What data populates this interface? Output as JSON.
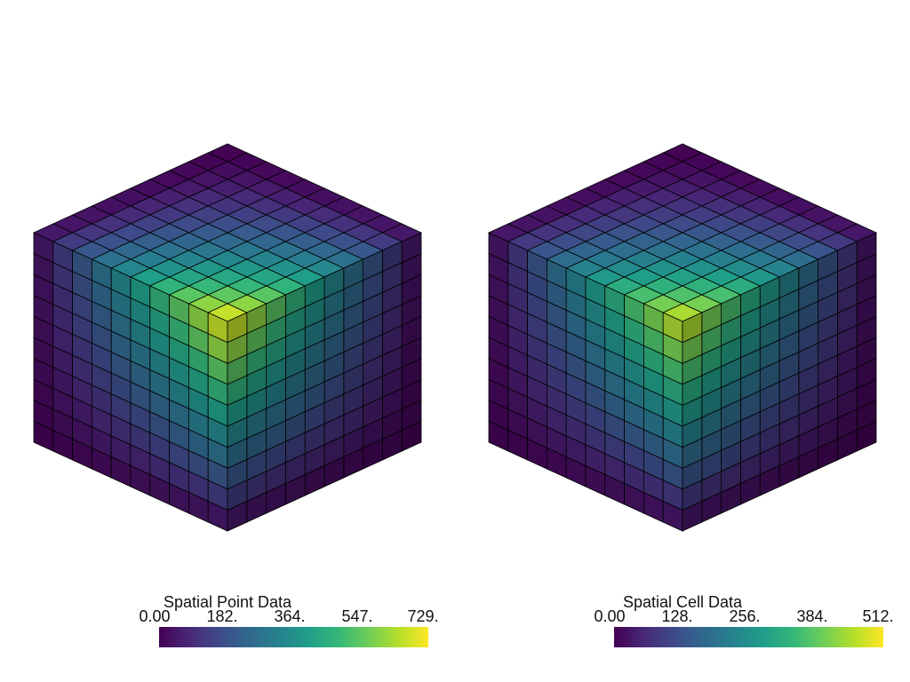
{
  "colormap": {
    "name": "viridis",
    "stops": [
      "#440154",
      "#482878",
      "#3e4a89",
      "#31688e",
      "#26828e",
      "#1f9e89",
      "#35b779",
      "#6ece58",
      "#b5de2b",
      "#fde725"
    ]
  },
  "background_color": "#ffffff",
  "edge_color": "#000000",
  "left_view": {
    "mesh_cells_per_side": 10,
    "data_mode": "point",
    "scalar_range": [
      0,
      729
    ],
    "scalar_bar": {
      "title": "Spatial Point Data",
      "ticks": [
        "0.00",
        "182.",
        "364.",
        "547.",
        "729."
      ]
    }
  },
  "right_view": {
    "mesh_cells_per_side": 10,
    "data_mode": "cell",
    "scalar_range": [
      0,
      512
    ],
    "scalar_bar": {
      "title": "Spatial Cell Data",
      "ticks": [
        "0.00",
        "128.",
        "256.",
        "384.",
        "512."
      ]
    }
  }
}
